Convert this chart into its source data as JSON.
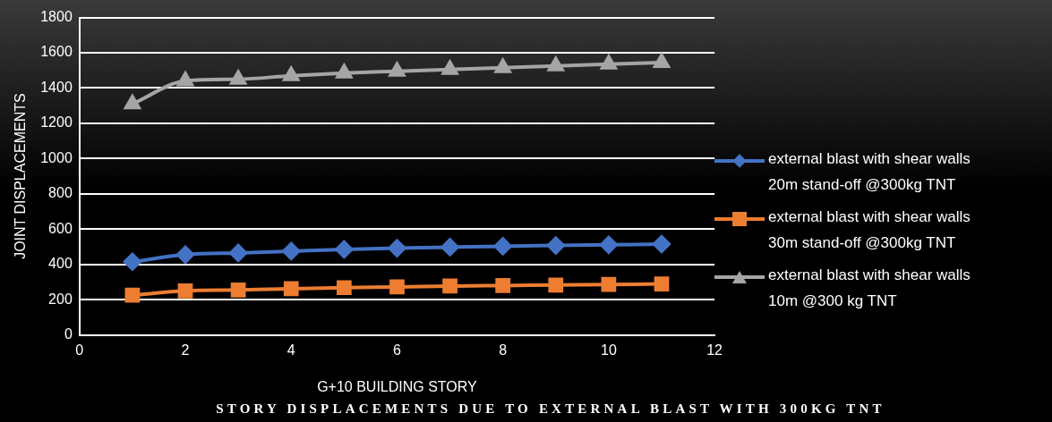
{
  "chart_data": {
    "type": "line",
    "title": "STORY DISPLACEMENTS DUE TO EXTERNAL BLAST WITH 300KG TNT",
    "xlabel": "G+10 BUILDING STORY",
    "ylabel": "JOINT DISPLACEMENTS",
    "x": [
      1,
      2,
      3,
      4,
      5,
      6,
      7,
      8,
      9,
      10,
      11
    ],
    "series": [
      {
        "name": "external blast with shear walls 20m stand-off @300kg TNT",
        "color": "#4472c4",
        "marker": "diamond",
        "values": [
          415,
          455,
          465,
          475,
          485,
          492,
          498,
          503,
          507,
          511,
          515
        ]
      },
      {
        "name": "external blast with shear walls 30m stand-off @300kg TNT",
        "color": "#ed7d31",
        "marker": "square",
        "values": [
          225,
          250,
          255,
          262,
          268,
          272,
          277,
          280,
          283,
          286,
          289
        ]
      },
      {
        "name": "external blast with shear walls 10m @300 kg TNT",
        "color": "#a5a5a5",
        "marker": "triangle",
        "values": [
          1310,
          1440,
          1450,
          1470,
          1485,
          1495,
          1505,
          1515,
          1525,
          1535,
          1545
        ]
      }
    ],
    "xlim": [
      0,
      12
    ],
    "xticks": [
      0,
      2,
      4,
      6,
      8,
      10,
      12
    ],
    "ylim": [
      0,
      1800
    ],
    "yticks": [
      0,
      200,
      400,
      600,
      800,
      1000,
      1200,
      1400,
      1600,
      1800
    ],
    "grid": "y",
    "legend": "right",
    "line_style": "solid"
  }
}
